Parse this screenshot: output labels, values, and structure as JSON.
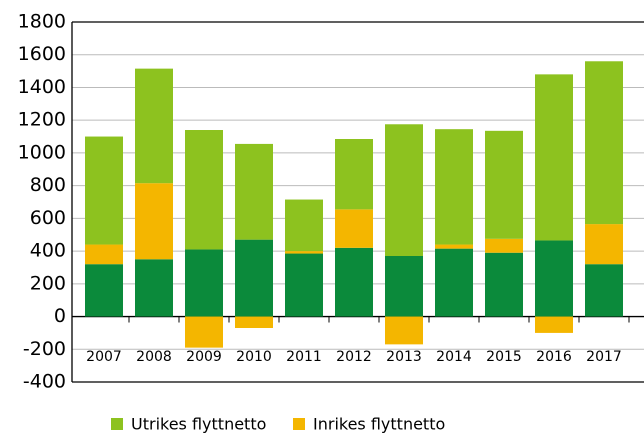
{
  "chart_data": {
    "type": "stacked_bar",
    "categories": [
      "2007",
      "2008",
      "2009",
      "2010",
      "2011",
      "2012",
      "2013",
      "2014",
      "2015",
      "2016",
      "2017"
    ],
    "series": [
      {
        "color": "#0b8a3b",
        "values": [
          320,
          350,
          410,
          470,
          385,
          420,
          370,
          415,
          390,
          465,
          320
        ]
      },
      {
        "name": "Inrikes flyttnetto",
        "color": "#f4b600",
        "values": [
          120,
          465,
          -190,
          -70,
          15,
          235,
          -170,
          25,
          85,
          -100,
          245
        ]
      },
      {
        "name": "Utrikes flyttnetto",
        "color": "#8dc21f",
        "values": [
          660,
          700,
          730,
          585,
          315,
          430,
          805,
          705,
          660,
          1015,
          995
        ]
      }
    ],
    "legend_order": [
      2,
      1
    ],
    "ylim": [
      -400,
      1800
    ],
    "yticks": [
      -400,
      -200,
      0,
      200,
      400,
      600,
      800,
      1000,
      1200,
      1400,
      1600,
      1800
    ],
    "grid": true
  }
}
